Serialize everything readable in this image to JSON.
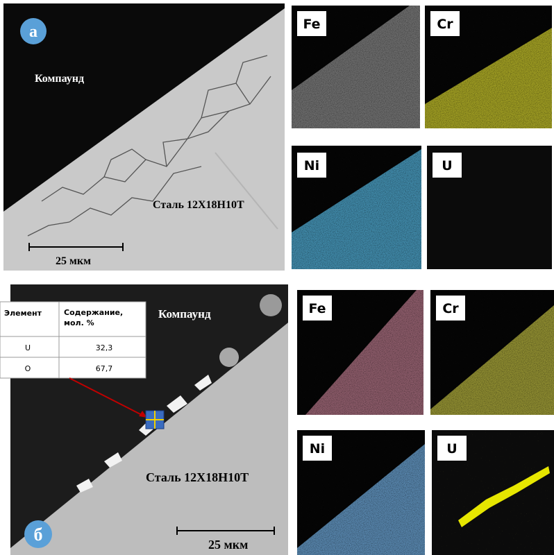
{
  "panel_a": {
    "label": "а",
    "matrix_label": "Компаунд",
    "steel_label": "Сталь 12Х18Н10Т",
    "scale_bar": "25 мкм",
    "maps": [
      "Fe",
      "Cr",
      "Ni",
      "U"
    ]
  },
  "panel_b": {
    "label": "б",
    "matrix_label": "Компаунд",
    "steel_label": "Сталь 12Х18Н10Т",
    "scale_bar": "25 мкм",
    "maps": [
      "Fe",
      "Cr",
      "Ni",
      "U"
    ],
    "table": {
      "headers": [
        "Элемент",
        "Содержание, мол. %"
      ],
      "rows": [
        [
          "U",
          "32,3"
        ],
        [
          "O",
          "67,7"
        ]
      ]
    }
  }
}
